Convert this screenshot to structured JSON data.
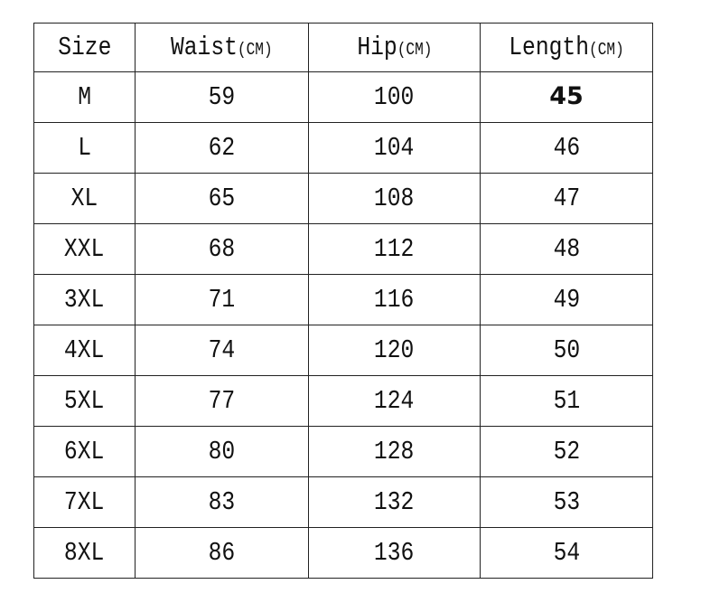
{
  "headers": [
    {
      "label": "Size",
      "unit": ""
    },
    {
      "label": "Waist",
      "unit": "(CM)"
    },
    {
      "label": "Hip",
      "unit": "(CM)"
    },
    {
      "label": "Length",
      "unit": "(CM)"
    }
  ],
  "rows": [
    [
      "M",
      "59",
      "100",
      "45"
    ],
    [
      "L",
      "62",
      "104",
      "46"
    ],
    [
      "XL",
      "65",
      "108",
      "47"
    ],
    [
      "XXL",
      "68",
      "112",
      "48"
    ],
    [
      "3XL",
      "71",
      "116",
      "49"
    ],
    [
      "4XL",
      "74",
      "120",
      "50"
    ],
    [
      "5XL",
      "77",
      "124",
      "51"
    ],
    [
      "6XL",
      "80",
      "128",
      "52"
    ],
    [
      "7XL",
      "83",
      "132",
      "53"
    ],
    [
      "8XL",
      "86",
      "136",
      "54"
    ]
  ],
  "bold_cells": [
    [
      0,
      3
    ]
  ]
}
